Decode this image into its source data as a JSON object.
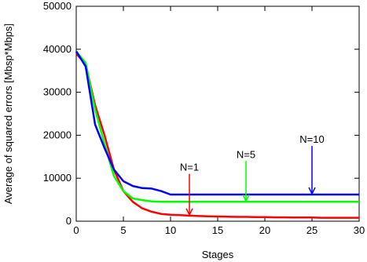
{
  "chart_data": {
    "type": "line",
    "title": "",
    "xlabel": "Stages",
    "ylabel": "Average of squared errors [Mbsp*Mbps]",
    "xlim": [
      0,
      30
    ],
    "ylim": [
      0,
      50000
    ],
    "xticks": [
      0,
      5,
      10,
      15,
      20,
      25,
      30
    ],
    "yticks": [
      0,
      10000,
      20000,
      30000,
      40000,
      50000
    ],
    "grid": false,
    "legend": "none",
    "series": [
      {
        "color": "#ff0000",
        "x": [
          0,
          1,
          2,
          3,
          4,
          5,
          6,
          7,
          8,
          9,
          10,
          11,
          12,
          13,
          14,
          15,
          16,
          17,
          18,
          19,
          20,
          21,
          22,
          23,
          24,
          25,
          26,
          27,
          28,
          29,
          30
        ],
        "y": [
          39000,
          36500,
          27000,
          20000,
          12000,
          7000,
          4500,
          3000,
          2200,
          1700,
          1500,
          1400,
          1300,
          1200,
          1150,
          1100,
          1050,
          1000,
          1000,
          950,
          950,
          900,
          900,
          850,
          850,
          850,
          800,
          800,
          800,
          800,
          800
        ]
      },
      {
        "color": "#00ff00",
        "x": [
          0,
          1,
          2,
          3,
          4,
          5,
          6,
          7,
          8,
          9,
          10,
          11,
          12,
          13,
          14,
          15,
          16,
          17,
          18,
          19,
          20,
          21,
          22,
          23,
          24,
          25,
          26,
          27,
          28,
          29,
          30
        ],
        "y": [
          39500,
          36800,
          26000,
          18000,
          10500,
          7000,
          5300,
          4900,
          4600,
          4500,
          4500,
          4500,
          4500,
          4500,
          4500,
          4500,
          4500,
          4500,
          4500,
          4500,
          4500,
          4500,
          4500,
          4500,
          4500,
          4500,
          4500,
          4500,
          4500,
          4500,
          4500
        ]
      },
      {
        "color": "#0000ff",
        "x": [
          0,
          1,
          2,
          3,
          4,
          5,
          6,
          7,
          8,
          9,
          10,
          11,
          12,
          13,
          14,
          15,
          16,
          17,
          18,
          19,
          20,
          21,
          22,
          23,
          24,
          25,
          26,
          27,
          28,
          29,
          30
        ],
        "y": [
          39500,
          36000,
          22500,
          17000,
          12000,
          9300,
          8200,
          7700,
          7600,
          7000,
          6200,
          6200,
          6200,
          6200,
          6200,
          6200,
          6200,
          6200,
          6200,
          6200,
          6200,
          6200,
          6200,
          6200,
          6200,
          6200,
          6200,
          6200,
          6200,
          6200,
          6200
        ]
      }
    ],
    "annotations": [
      {
        "text": "N=1",
        "color": "#ff0000",
        "arrow_x": 12,
        "arrow_from_y": 11000,
        "arrow_to_y": 1300
      },
      {
        "text": "N=5",
        "color": "#00ff00",
        "arrow_x": 18,
        "arrow_from_y": 14000,
        "arrow_to_y": 4500
      },
      {
        "text": "N=10",
        "color": "#0000ff",
        "arrow_x": 25,
        "arrow_from_y": 17500,
        "arrow_to_y": 6200
      }
    ]
  }
}
